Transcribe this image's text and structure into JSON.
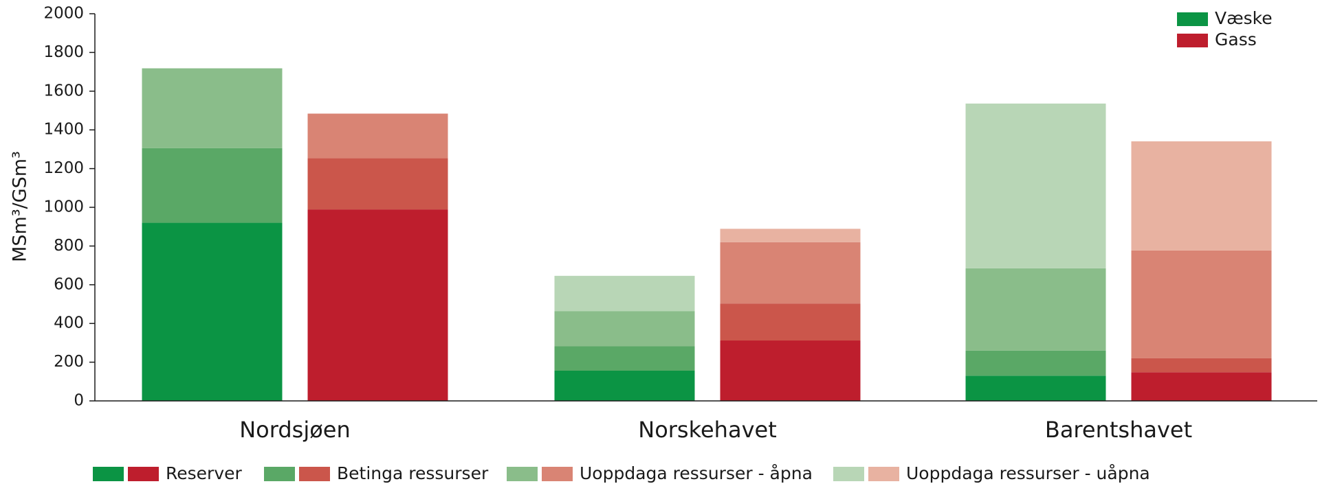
{
  "chart_data": {
    "type": "grouped-stacked-bar",
    "ylabel": "MSm³/GSm³",
    "categories": [
      "Nordsjøen",
      "Norskehavet",
      "Barentshavet"
    ],
    "groups": [
      {
        "name": "Væske",
        "color": "#0b9444"
      },
      {
        "name": "Gass",
        "color": "#be1e2d"
      }
    ],
    "series": [
      {
        "name": "Reserver",
        "colors": [
          "#0b9444",
          "#be1e2d"
        ],
        "values": [
          [
            920,
            989
          ],
          [
            156,
            312
          ],
          [
            130,
            148
          ]
        ]
      },
      {
        "name": "Betinga ressurser",
        "colors": [
          "#5aa866",
          "#cb564b"
        ],
        "values": [
          [
            386,
            265
          ],
          [
            126,
            191
          ],
          [
            130,
            73
          ]
        ]
      },
      {
        "name": "Uoppdaga ressurser - åpna",
        "colors": [
          "#8abd8a",
          "#d98474"
        ],
        "values": [
          [
            412,
            230
          ],
          [
            182,
            317
          ],
          [
            425,
            556
          ]
        ]
      },
      {
        "name": "Uoppdaga ressurser - uåpna",
        "colors": [
          "#b8d6b6",
          "#e8b2a1"
        ],
        "values": [
          [
            0,
            0
          ],
          [
            182,
            69
          ],
          [
            851,
            564
          ]
        ]
      }
    ],
    "ylim": [
      0,
      2000
    ],
    "yticks": [
      0,
      200,
      400,
      600,
      800,
      1000,
      1200,
      1400,
      1600,
      1800,
      2000
    ]
  }
}
